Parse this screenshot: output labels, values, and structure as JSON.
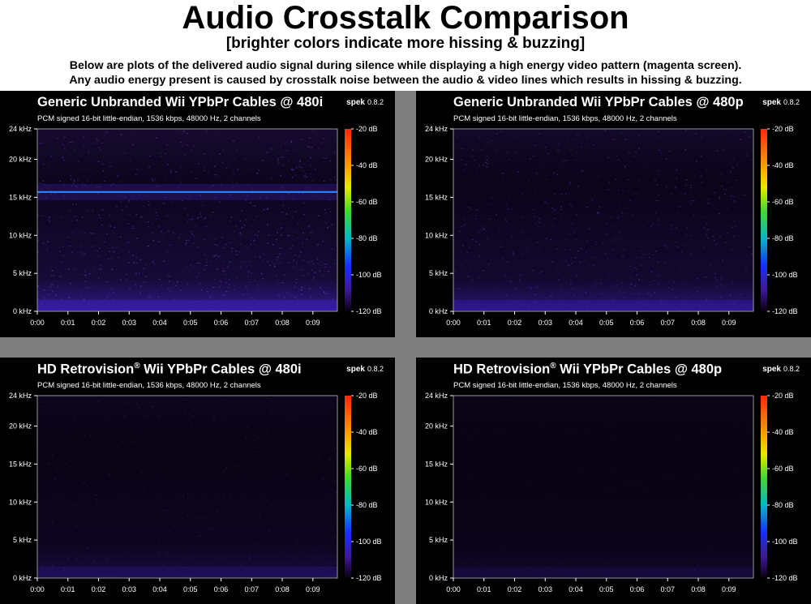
{
  "header": {
    "title": "Audio Crosstalk Comparison",
    "subtitle": "[brighter colors indicate more hissing & buzzing]",
    "description_line1": "Below are plots of the delivered audio signal during silence while displaying a high energy video pattern (magenta screen).",
    "description_line2": "Any audio energy present is caused by crosstalk noise between the audio & video lines which results in hissing & buzzing."
  },
  "colors": {
    "background": "#000000",
    "divider": "#7f7f7f",
    "text": "#ffffff",
    "noise": "#3a1878",
    "hum_line": "#1e6bff"
  },
  "chart_data": [
    {
      "type": "heatmap",
      "title": "Generic Unbranded Wii YPbPr Cables @ 480i",
      "info": "PCM signed 16-bit little-endian, 1536 kbps, 48000 Hz, 2 channels",
      "app": "spek",
      "app_version": "0.8.2",
      "x_ticks": [
        "0:00",
        "0:01",
        "0:02",
        "0:03",
        "0:04",
        "0:05",
        "0:06",
        "0:07",
        "0:08",
        "0:09"
      ],
      "y_ticks": [
        "24 kHz",
        "20 kHz",
        "15 kHz",
        "10 kHz",
        "5 kHz",
        "0 kHz"
      ],
      "colorbar_ticks": [
        "-20 dB",
        "-40 dB",
        "-60 dB",
        "-80 dB",
        "-100 dB",
        "-120 dB"
      ],
      "ylim_khz": [
        0,
        24
      ],
      "clim_db": [
        -120,
        -20
      ],
      "noise_level": 0.85,
      "tone_khz": 15.7
    },
    {
      "type": "heatmap",
      "title": "Generic Unbranded Wii YPbPr Cables @ 480p",
      "info": "PCM signed 16-bit little-endian, 1536 kbps, 48000 Hz, 2 channels",
      "app": "spek",
      "app_version": "0.8.2",
      "x_ticks": [
        "0:00",
        "0:01",
        "0:02",
        "0:03",
        "0:04",
        "0:05",
        "0:06",
        "0:07",
        "0:08",
        "0:09"
      ],
      "y_ticks": [
        "24 kHz",
        "20 kHz",
        "15 kHz",
        "10 kHz",
        "5 kHz",
        "0 kHz"
      ],
      "colorbar_ticks": [
        "-20 dB",
        "-40 dB",
        "-60 dB",
        "-80 dB",
        "-100 dB",
        "-120 dB"
      ],
      "ylim_khz": [
        0,
        24
      ],
      "clim_db": [
        -120,
        -20
      ],
      "noise_level": 0.65,
      "tone_khz": null
    },
    {
      "type": "heatmap",
      "title": "HD Retrovision",
      "title_mark": "®",
      "title_rest": " Wii YPbPr Cables @ 480i",
      "info": "PCM signed 16-bit little-endian, 1536 kbps, 48000 Hz, 2 channels",
      "app": "spek",
      "app_version": "0.8.2",
      "x_ticks": [
        "0:00",
        "0:01",
        "0:02",
        "0:03",
        "0:04",
        "0:05",
        "0:06",
        "0:07",
        "0:08",
        "0:09"
      ],
      "y_ticks": [
        "24 kHz",
        "20 kHz",
        "15 kHz",
        "10 kHz",
        "5 kHz",
        "0 kHz"
      ],
      "colorbar_ticks": [
        "-20 dB",
        "-40 dB",
        "-60 dB",
        "-80 dB",
        "-100 dB",
        "-120 dB"
      ],
      "ylim_khz": [
        0,
        24
      ],
      "clim_db": [
        -120,
        -20
      ],
      "noise_level": 0.35,
      "tone_khz": null
    },
    {
      "type": "heatmap",
      "title": "HD Retrovision",
      "title_mark": "®",
      "title_rest": " Wii YPbPr Cables @ 480p",
      "info": "PCM signed 16-bit little-endian, 1536 kbps, 48000 Hz, 2 channels",
      "app": "spek",
      "app_version": "0.8.2",
      "x_ticks": [
        "0:00",
        "0:01",
        "0:02",
        "0:03",
        "0:04",
        "0:05",
        "0:06",
        "0:07",
        "0:08",
        "0:09"
      ],
      "y_ticks": [
        "24 kHz",
        "20 kHz",
        "15 kHz",
        "10 kHz",
        "5 kHz",
        "0 kHz"
      ],
      "colorbar_ticks": [
        "-20 dB",
        "-40 dB",
        "-60 dB",
        "-80 dB",
        "-100 dB",
        "-120 dB"
      ],
      "ylim_khz": [
        0,
        24
      ],
      "clim_db": [
        -120,
        -20
      ],
      "noise_level": 0.2,
      "tone_khz": null
    }
  ]
}
